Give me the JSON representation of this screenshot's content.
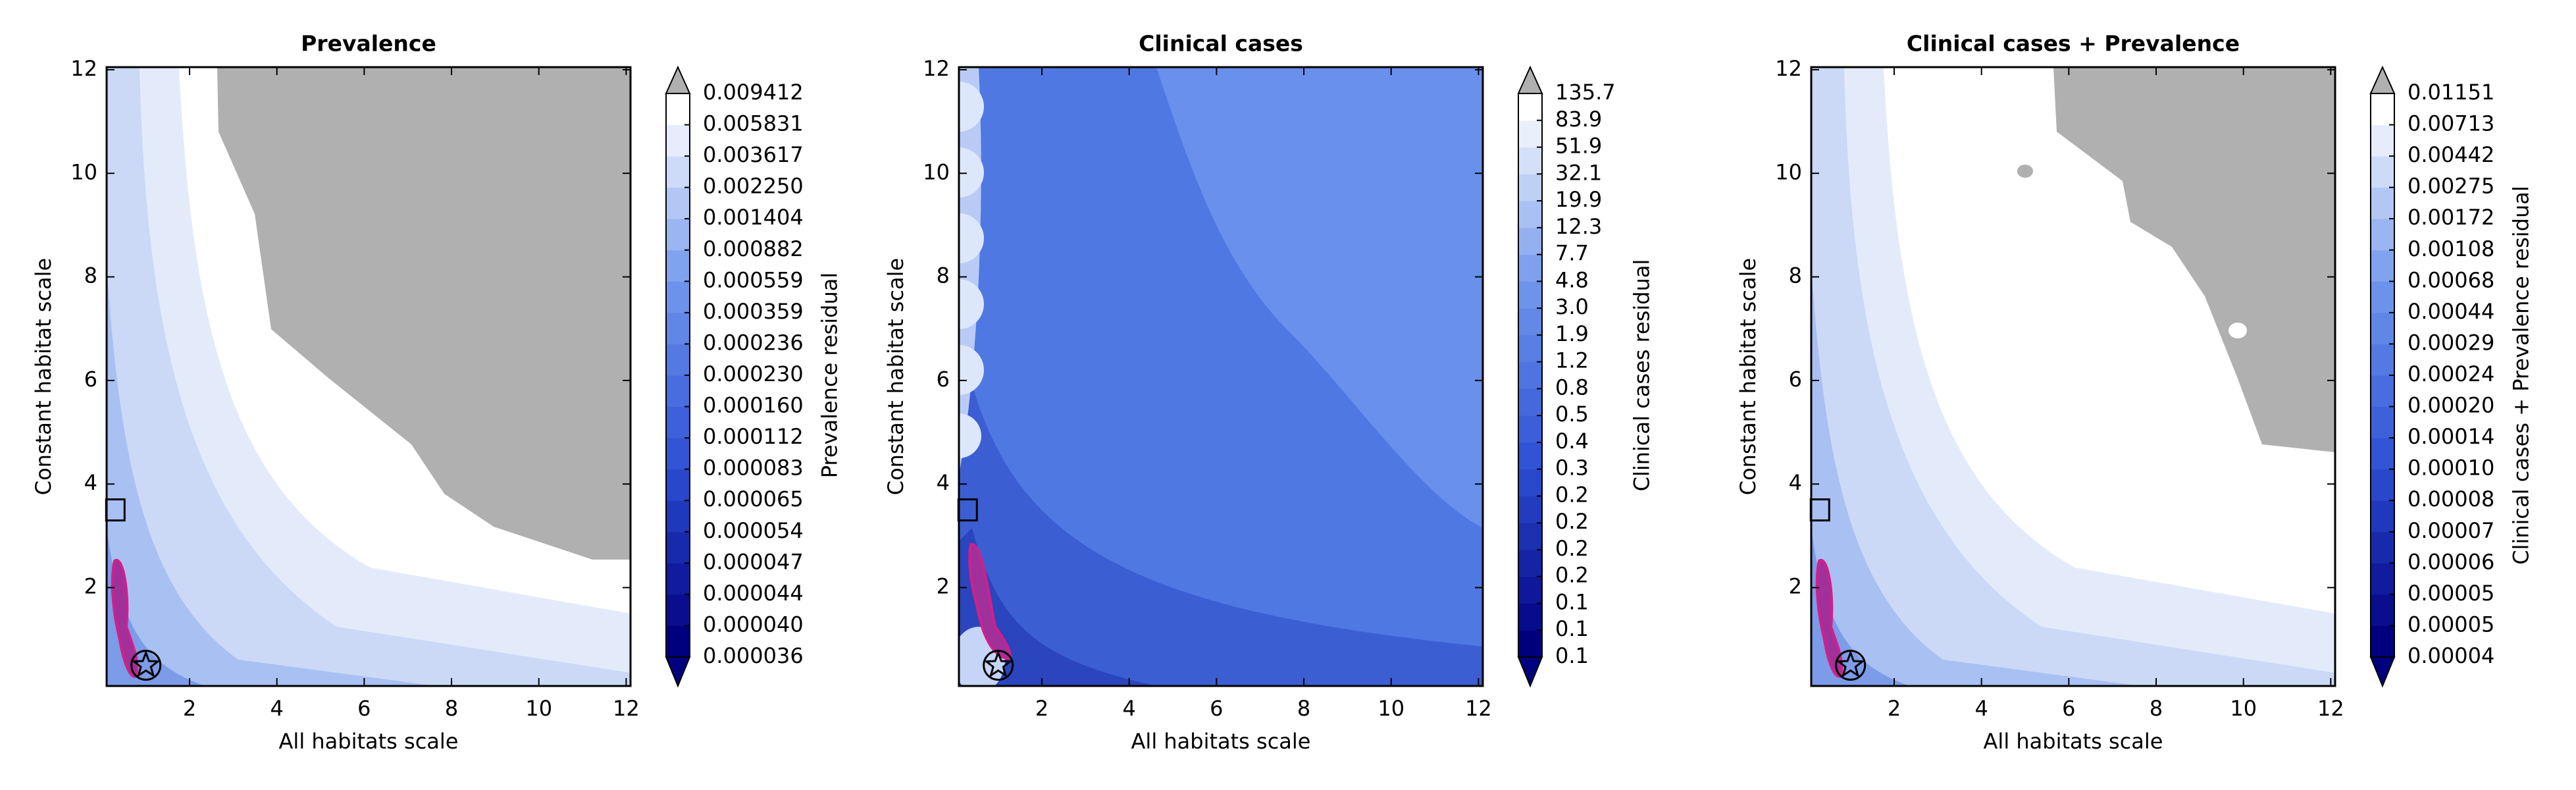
{
  "chart_data": [
    {
      "type": "contour",
      "title": "Prevalence",
      "xlabel": "All habitats scale",
      "ylabel": "Constant habitat scale",
      "xlim": [
        0.1,
        12.1
      ],
      "ylim": [
        0.1,
        12.05
      ],
      "xticks": [
        2,
        4,
        6,
        8,
        10,
        12
      ],
      "yticks": [
        2,
        4,
        6,
        8,
        10,
        12
      ],
      "colormap": [
        "#00007f",
        "#2e50d4",
        "#7096ec",
        "#ffffff"
      ],
      "over_color": "#b0b0b0",
      "markers": [
        {
          "shape": "square",
          "x": 0.3,
          "y": 3.5
        },
        {
          "shape": "star",
          "x": 1,
          "y": 0.5
        }
      ],
      "colorbar": {
        "label": "Prevalence residual",
        "ticks": [
          3.6e-05,
          {
            "value": 4e-05,
            "label": "0.000040"
          },
          4.4e-05,
          4.7e-05,
          5.4e-05,
          6.5e-05,
          8.3e-05,
          0.000112,
          {
            "value": 0.00016,
            "label": "0.000160"
          },
          {
            "value": 0.00023,
            "label": "0.000230"
          },
          0.000236,
          0.000359,
          0.000559,
          0.000882,
          0.001404,
          {
            "value": 0.00225,
            "label": "0.002250"
          },
          0.003617,
          0.005831,
          0.009412
        ]
      }
    },
    {
      "type": "contour",
      "title": "Clinical cases",
      "xlabel": "All habitats scale",
      "ylabel": "Constant habitat scale",
      "xlim": [
        0.1,
        12.1
      ],
      "ylim": [
        0.1,
        12.05
      ],
      "xticks": [
        2,
        4,
        6,
        8,
        10,
        12
      ],
      "yticks": [
        2,
        4,
        6,
        8,
        10,
        12
      ],
      "colormap": [
        "#00007f",
        "#2e50d4",
        "#7096ec",
        "#ffffff"
      ],
      "over_color": "#b0b0b0",
      "markers": [
        {
          "shape": "square",
          "x": 0.3,
          "y": 3.5
        },
        {
          "shape": "star",
          "x": 1,
          "y": 0.5
        }
      ],
      "colorbar": {
        "label": "Clinical cases residual",
        "ticks": [
          0.1,
          0.1,
          0.1,
          0.2,
          0.2,
          0.2,
          0.2,
          0.3,
          0.4,
          0.5,
          0.8,
          1.2,
          1.9,
          {
            "value": 3,
            "label": "3.0"
          },
          4.8,
          7.7,
          12.3,
          19.9,
          32.1,
          51.9,
          83.9,
          135.7
        ]
      }
    },
    {
      "type": "contour",
      "title": "Clinical cases + Prevalence",
      "xlabel": "All habitats scale",
      "ylabel": "Constant habitat scale",
      "xlim": [
        0.1,
        12.1
      ],
      "ylim": [
        0.1,
        12.05
      ],
      "xticks": [
        2,
        4,
        6,
        8,
        10,
        12
      ],
      "yticks": [
        2,
        4,
        6,
        8,
        10,
        12
      ],
      "colormap": [
        "#00007f",
        "#2e50d4",
        "#7096ec",
        "#ffffff"
      ],
      "over_color": "#b0b0b0",
      "markers": [
        {
          "shape": "square",
          "x": 0.3,
          "y": 3.5
        },
        {
          "shape": "star",
          "x": 1,
          "y": 0.5
        }
      ],
      "colorbar": {
        "label": "Clinical cases + Prevalence residual",
        "ticks": [
          4e-05,
          5e-05,
          5e-05,
          6e-05,
          7e-05,
          8e-05,
          {
            "value": 0.0001,
            "label": "0.00010"
          },
          0.00014,
          {
            "value": 0.0002,
            "label": "0.00020"
          },
          0.00024,
          0.00029,
          0.00044,
          0.00068,
          0.00108,
          0.00172,
          0.00275,
          0.00442,
          0.00713,
          0.01151
        ]
      }
    }
  ]
}
